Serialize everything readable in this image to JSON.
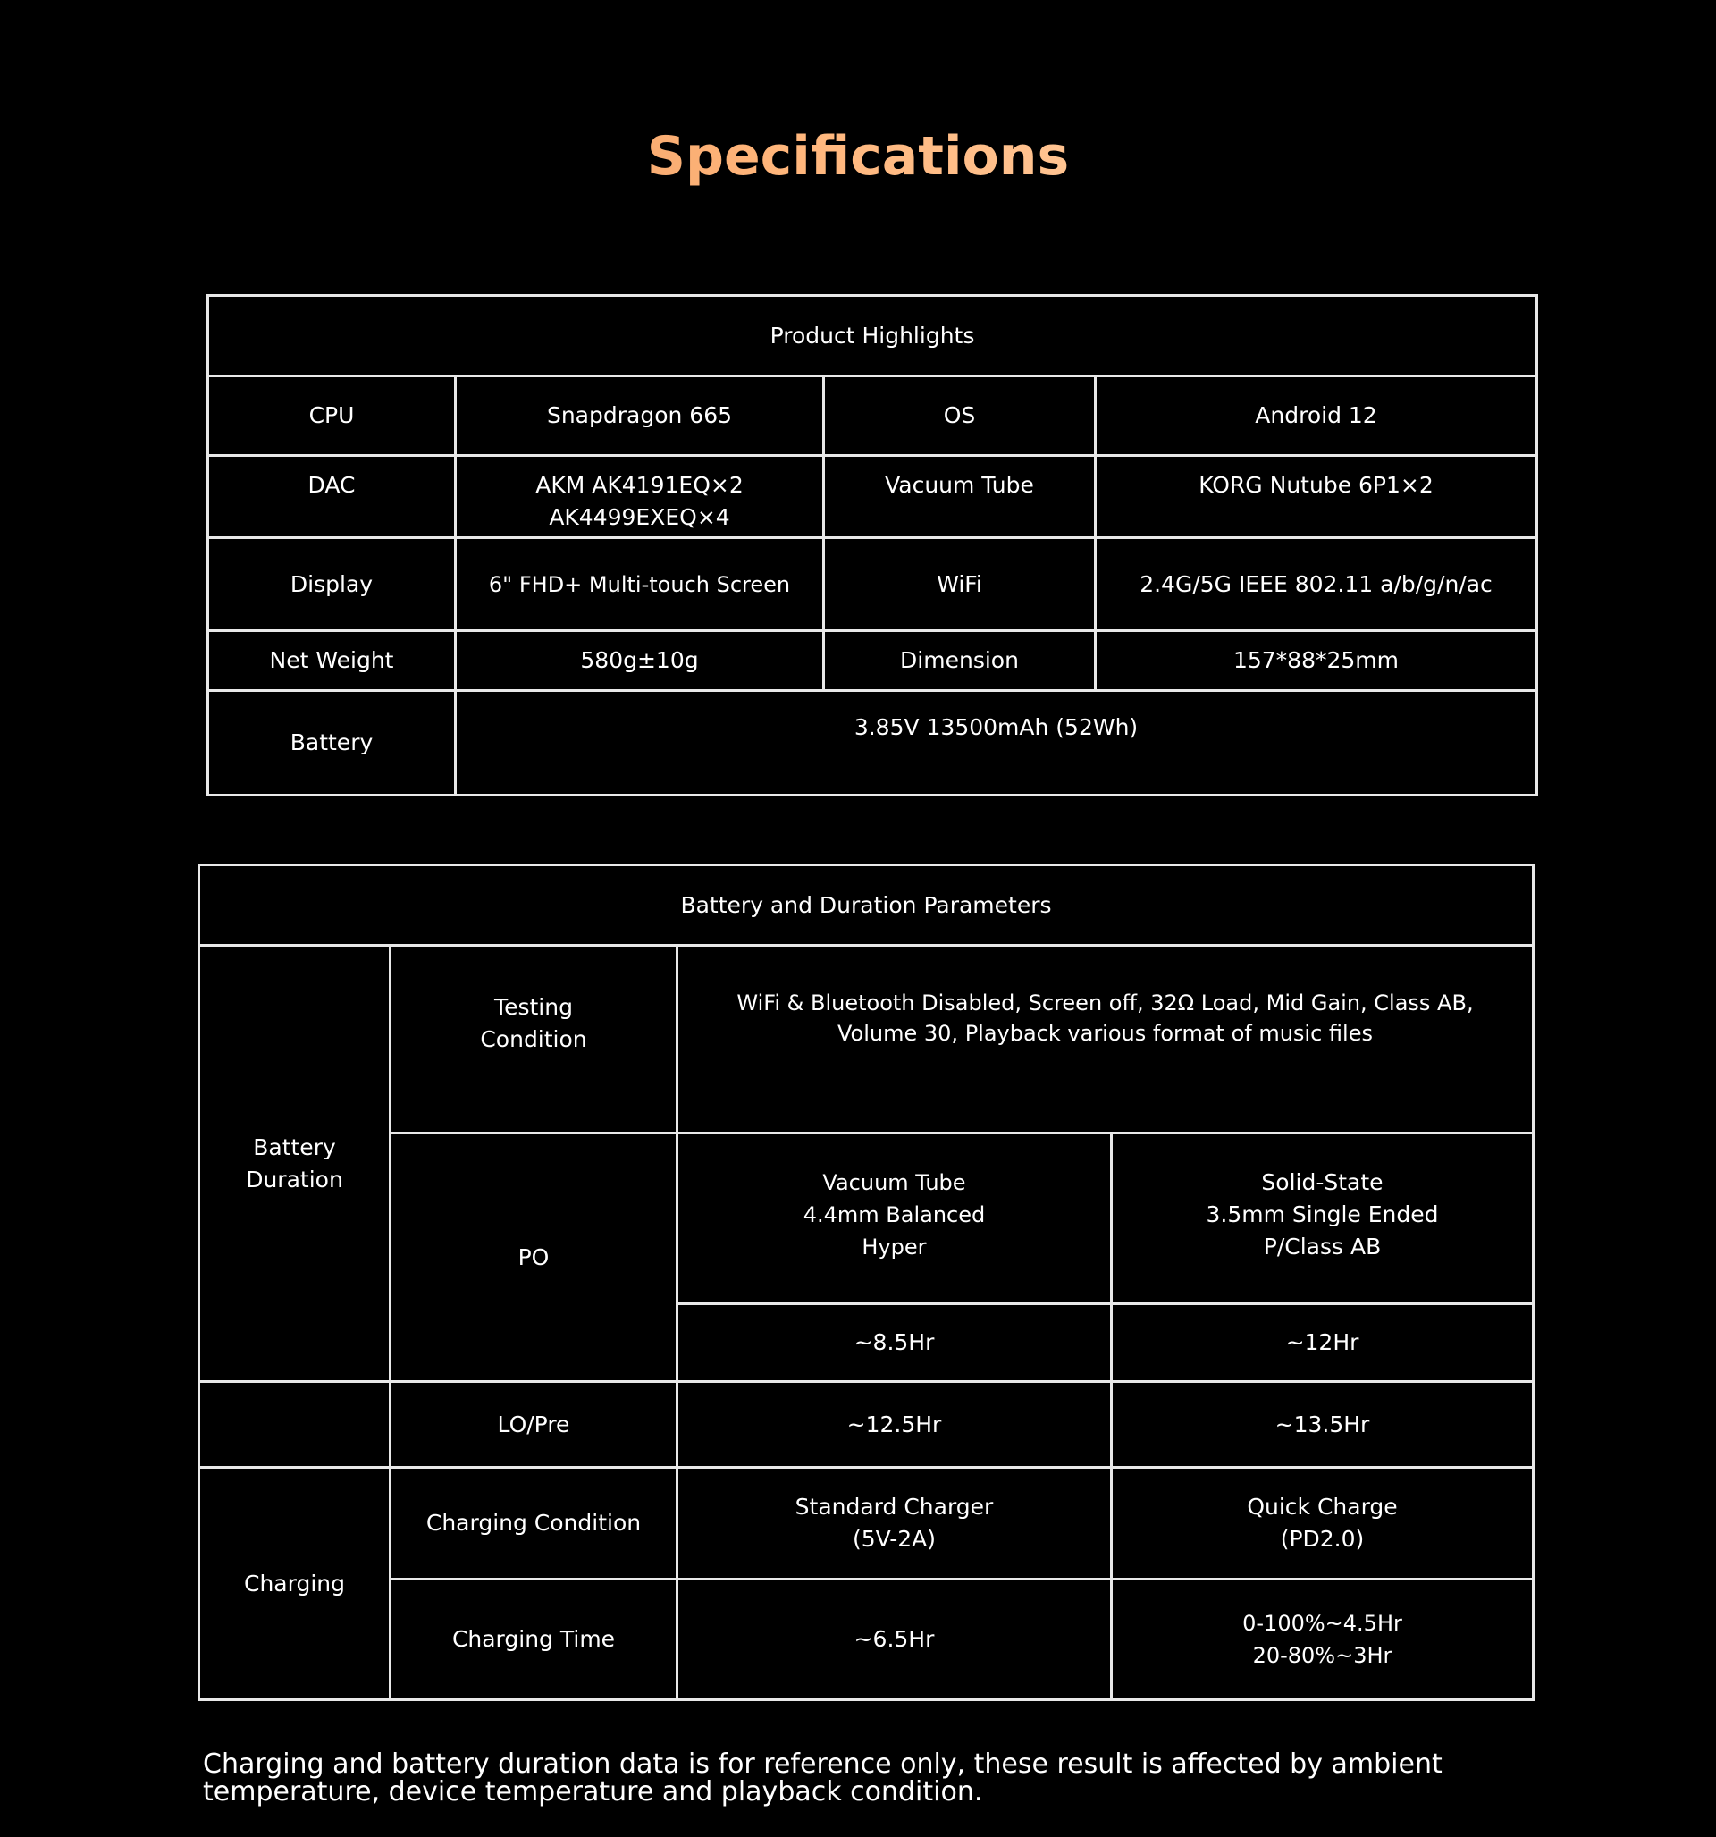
{
  "title": "Specifications",
  "highlights": {
    "heading": "Product Highlights",
    "cpu_label": "CPU",
    "cpu": "Snapdragon  665",
    "os_label": "OS",
    "os": "Android 12",
    "dac_label": "DAC",
    "dac": "AKM AK4191EQ×2\n  AK4499EXEQ×4",
    "tube_label": "Vacuum Tube",
    "tube": "KORG Nutube 6P1×2",
    "display_label": "Display",
    "display": "6\" FHD+ Multi-touch Screen",
    "wifi_label": "WiFi",
    "wifi": "2.4G/5G IEEE 802.11 a/b/g/n/ac",
    "weight_label": "Net Weight",
    "weight": "580g±10g",
    "dimension_label": "Dimension",
    "dimension": "157*88*25mm",
    "battery_label": "Battery",
    "battery": "3.85V 13500mAh (52Wh)"
  },
  "battery": {
    "heading": "Battery and Duration Parameters",
    "duration_label": "Battery\nDuration",
    "testing_label": "Testing\nCondition",
    "testing": "WiFi & Bluetooth Disabled, Screen off, 32Ω Load, Mid Gain, Class AB,\nVolume 30, Playback various format of music files",
    "po_label": "PO",
    "po_tube": "Vacuum Tube\n4.4mm Balanced\nHyper",
    "po_solid": "Solid-State\n3.5mm Single Ended\nP/Class AB",
    "po_tube_time": "~8.5Hr",
    "po_solid_time": "~12Hr",
    "lo_label": "LO/Pre",
    "lo_tube_time": "~12.5Hr",
    "lo_solid_time": "~13.5Hr",
    "charging_label": "Charging",
    "cond_label": "Charging Condition",
    "cond_std": "Standard Charger\n(5V-2A)",
    "cond_quick": "Quick Charge\n(PD2.0)",
    "time_label": "Charging Time",
    "time_std": "~6.5Hr",
    "time_quick": "0-100%~4.5Hr\n20-80%~3Hr"
  },
  "note": "Charging and battery duration data is for reference only, these result is affected by ambient temperature, device temperature and playback condition."
}
